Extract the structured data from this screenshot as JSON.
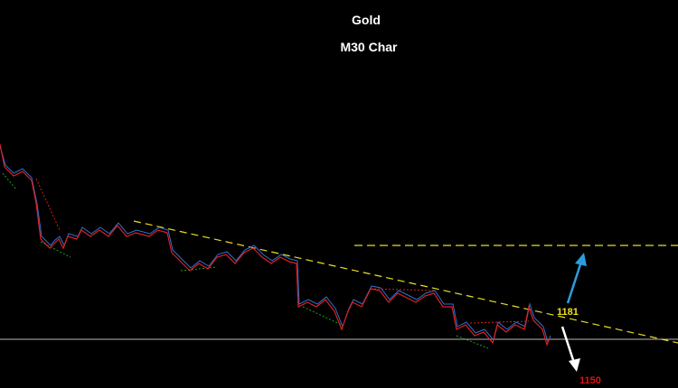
{
  "title": "Gold",
  "subtitle": "M30 Char",
  "annotations": {
    "resistance": "1181",
    "target": "1150"
  }
}
